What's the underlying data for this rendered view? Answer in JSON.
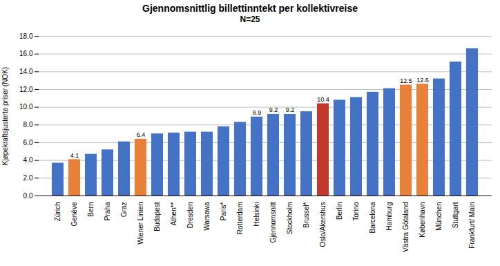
{
  "chart_data": {
    "type": "bar",
    "title": "Gjennomsnittlig billettinntekt per kollektivreise",
    "subtitle": "N=25",
    "ylabel": "Kjøpekraftsjusterte priser (NOK)",
    "categories": [
      "Zürich",
      "Genève",
      "Bern",
      "Praha",
      "Graz",
      "Wiener Linien",
      "Budapest",
      "Athen**",
      "Dresden",
      "Warsawa",
      "Paris*",
      "Rotterdam",
      "Helsinki",
      "Gjennomsnitt",
      "Stockholm",
      "Brussel*",
      "Oslo/Akershus",
      "Berlin",
      "Torino",
      "Barcelona",
      "Hamburg",
      "Västra Götaland",
      "København",
      "München",
      "Stuttgart",
      "Frankfurt/ Main"
    ],
    "values": [
      3.7,
      4.1,
      4.7,
      5.2,
      6.1,
      6.4,
      7.0,
      7.1,
      7.2,
      7.2,
      7.8,
      8.3,
      8.9,
      9.2,
      9.2,
      9.5,
      10.4,
      10.8,
      11.1,
      11.7,
      12.1,
      12.5,
      12.6,
      13.2,
      15.1,
      16.6
    ],
    "value_labels": [
      null,
      "4.1",
      null,
      null,
      null,
      "6.4",
      null,
      null,
      null,
      null,
      null,
      null,
      "8.9",
      "9.2",
      "9.2",
      null,
      "10.4",
      null,
      null,
      null,
      null,
      "12.5",
      "12.6",
      null,
      null,
      null
    ],
    "colors": [
      "#4472C4",
      "#E8803A",
      "#4472C4",
      "#4472C4",
      "#4472C4",
      "#E8803A",
      "#4472C4",
      "#4472C4",
      "#4472C4",
      "#4472C4",
      "#4472C4",
      "#4472C4",
      "#4472C4",
      "#4472C4",
      "#4472C4",
      "#4472C4",
      "#C0392B",
      "#4472C4",
      "#4472C4",
      "#4472C4",
      "#4472C4",
      "#E8803A",
      "#E8803A",
      "#4472C4",
      "#4472C4",
      "#4472C4"
    ],
    "ylim": [
      0,
      18.0
    ],
    "yticks": [
      {
        "value": 0,
        "label": "0.0"
      },
      {
        "value": 2,
        "label": "2.0"
      },
      {
        "value": 4,
        "label": "4.0"
      },
      {
        "value": 6,
        "label": "6.0"
      },
      {
        "value": 8,
        "label": "8.0"
      },
      {
        "value": 10,
        "label": "10.0"
      },
      {
        "value": 12,
        "label": "12.0"
      },
      {
        "value": 14,
        "label": "14.0"
      },
      {
        "value": 16,
        "label": "16.0"
      },
      {
        "value": 18,
        "label": "18.0"
      }
    ],
    "grid": true
  }
}
